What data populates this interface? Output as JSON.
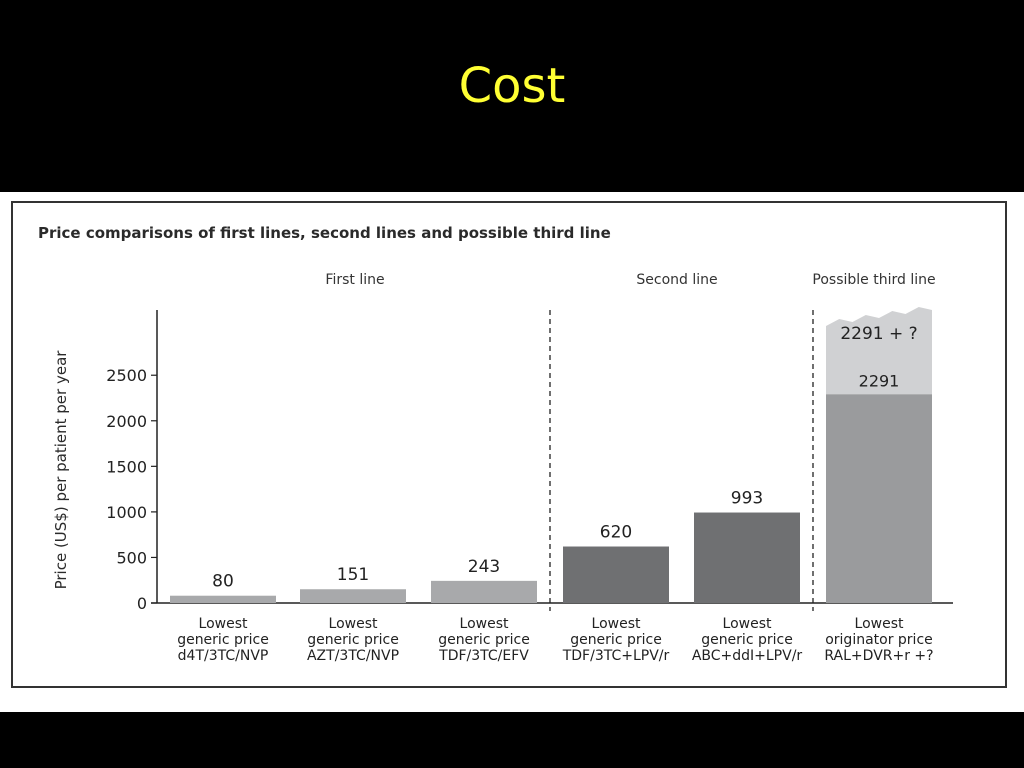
{
  "slide": {
    "title": "Cost"
  },
  "chart_data": {
    "type": "bar",
    "title": "Price comparisons of first lines, second lines and possible third line",
    "ylabel": "Price (US$) per patient per year",
    "ylim": [
      0,
      3200
    ],
    "yticks": [
      0,
      500,
      1000,
      1500,
      2000,
      2500
    ],
    "grid": false,
    "groups": [
      {
        "label": "First line"
      },
      {
        "label": "Second line"
      },
      {
        "label": "Possible third line"
      }
    ],
    "bars": [
      {
        "group": 0,
        "value": 80,
        "value_label": "80",
        "label": [
          "Lowest",
          "generic price",
          "d4T/3TC/NVP"
        ],
        "color": "#a8a9ab"
      },
      {
        "group": 0,
        "value": 151,
        "value_label": "151",
        "label": [
          "Lowest",
          "generic price",
          "AZT/3TC/NVP"
        ],
        "color": "#a8a9ab"
      },
      {
        "group": 0,
        "value": 243,
        "value_label": "243",
        "label": [
          "Lowest",
          "generic price",
          "TDF/3TC/EFV"
        ],
        "color": "#a8a9ab"
      },
      {
        "group": 1,
        "value": 620,
        "value_label": "620",
        "label": [
          "Lowest",
          "generic price",
          "TDF/3TC+LPV/r"
        ],
        "color": "#6f7072"
      },
      {
        "group": 1,
        "value": 993,
        "value_label": "993",
        "label": [
          "Lowest",
          "generic price",
          "ABC+ddI+LPV/r"
        ],
        "color": "#6f7072"
      },
      {
        "group": 2,
        "value": 2291,
        "value_label": "2291",
        "extension_label": "2291 + ?",
        "label": [
          "Lowest",
          "originator price",
          "RAL+DVR+r +?"
        ],
        "color": "#9a9b9d",
        "extension_color": "#d0d1d3"
      }
    ]
  }
}
